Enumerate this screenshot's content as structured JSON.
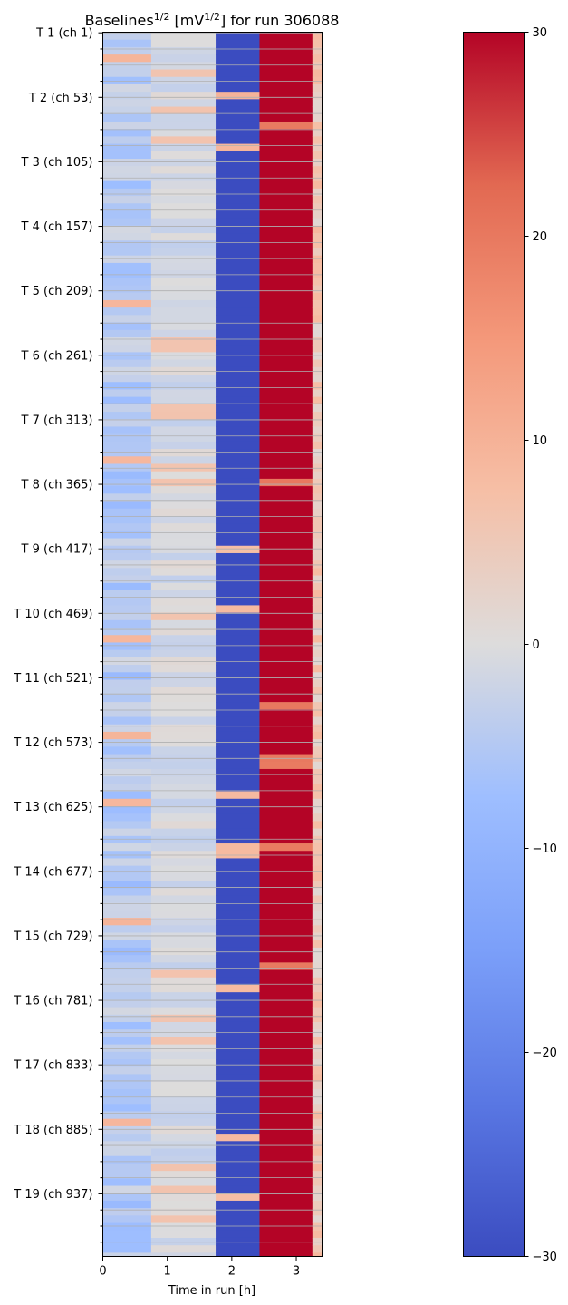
{
  "chart_data": {
    "type": "heatmap",
    "title": {
      "prefix": "Baselines",
      "sup": "1/2",
      "middle": " [mV",
      "sup2": "1/2",
      "suffix": "] for run 306088"
    },
    "xlabel": "Time in run [h]",
    "ylabel": "",
    "x_ticks": [
      0,
      1,
      2,
      3
    ],
    "xlim": [
      0,
      3.4
    ],
    "n_channels": 987,
    "y_tick_labels": [
      "T 1 (ch 1)",
      "T 2 (ch 53)",
      "T 3 (ch 105)",
      "T 4 (ch 157)",
      "T 5 (ch 209)",
      "T 6 (ch 261)",
      "T 7 (ch 313)",
      "T 8 (ch 365)",
      "T 9 (ch 417)",
      "T 10 (ch 469)",
      "T 11 (ch 521)",
      "T 12 (ch 573)",
      "T 13 (ch 625)",
      "T 14 (ch 677)",
      "T 15 (ch 729)",
      "T 16 (ch 781)",
      "T 17 (ch 833)",
      "T 18 (ch 885)",
      "T 19 (ch 937)"
    ],
    "time_bins": [
      {
        "x0": 0.0,
        "x1": 0.75,
        "typical": -4.5
      },
      {
        "x0": 0.75,
        "x1": 1.75,
        "typical": -1.0
      },
      {
        "x0": 1.75,
        "x1": 2.43,
        "typical": -30
      },
      {
        "x0": 2.43,
        "x1": 3.25,
        "typical": 30
      },
      {
        "x0": 3.25,
        "x1": 3.4,
        "typical": 5.0
      }
    ],
    "colorbar": {
      "min": -30,
      "max": 30,
      "ticks": [
        30,
        20,
        10,
        0,
        -10,
        -20,
        -30
      ],
      "colormap": "coolwarm"
    },
    "grid": true
  }
}
